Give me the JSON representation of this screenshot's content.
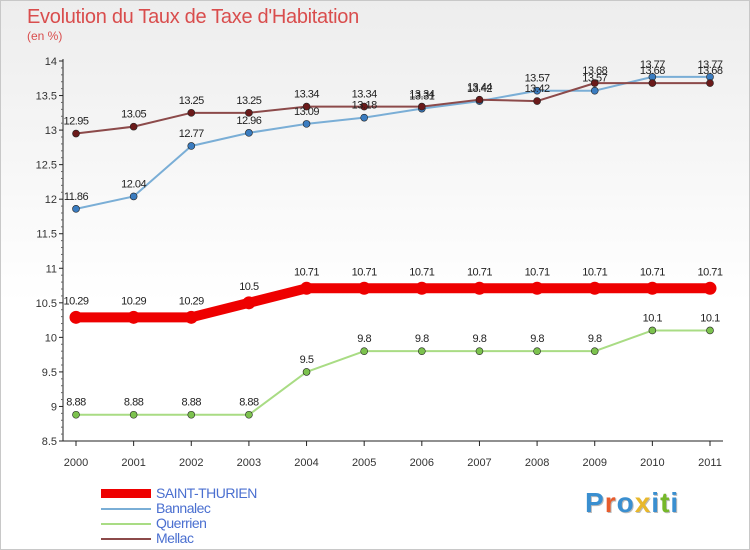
{
  "title": "Evolution du Taux de Taxe d'Habitation",
  "subtitle": "(en %)",
  "brand": "Proxiti",
  "brand_colors": [
    "#3a8fd0",
    "#e85c2c",
    "#3a8fd0",
    "#e8b82c",
    "#3a8fd0",
    "#76b82a",
    "#3a8fd0"
  ],
  "chart_data": {
    "type": "line",
    "title": "Evolution du Taux de Taxe d'Habitation",
    "ylabel": "(en %)",
    "xlabel": "",
    "x": [
      "2000",
      "2001",
      "2002",
      "2003",
      "2004",
      "2005",
      "2006",
      "2007",
      "2008",
      "2009",
      "2010",
      "2011"
    ],
    "ylim": [
      8.5,
      14
    ],
    "yticks": [
      "8.5",
      "9",
      "9.5",
      "10",
      "10.5",
      "11",
      "11.5",
      "12",
      "12.5",
      "13",
      "13.5",
      "14"
    ],
    "grid": false,
    "legend_position": "bottom-left",
    "series": [
      {
        "name": "SAINT-THURIEN",
        "color": "#ee0000",
        "values": [
          10.29,
          10.29,
          10.29,
          10.5,
          10.71,
          10.71,
          10.71,
          10.71,
          10.71,
          10.71,
          10.71,
          10.71
        ],
        "labels": [
          "10.29",
          "10.29",
          "10.29",
          "10.5",
          "10.71",
          "10.71",
          "10.71",
          "10.71",
          "10.71",
          "10.71",
          "10.71",
          "10.71"
        ]
      },
      {
        "name": "Bannalec",
        "color": "#7aaed6",
        "marker": "#3a7cc0",
        "values": [
          11.86,
          12.04,
          12.77,
          12.96,
          13.09,
          13.18,
          13.31,
          13.42,
          13.57,
          13.57,
          13.77,
          13.77
        ],
        "labels": [
          "11.86",
          "12.04",
          "12.77",
          "12.96",
          "13.09",
          "13.18",
          "13.31",
          "13.42",
          "13.57",
          "13.57",
          "13.77",
          "13.77"
        ]
      },
      {
        "name": "Querrien",
        "color": "#a9dc84",
        "marker": "#7cc24e",
        "values": [
          8.88,
          8.88,
          8.88,
          8.88,
          9.5,
          9.8,
          9.8,
          9.8,
          9.8,
          9.8,
          10.1,
          10.1
        ],
        "labels": [
          "8.88",
          "8.88",
          "8.88",
          "8.88",
          "9.5",
          "9.8",
          "9.8",
          "9.8",
          "9.8",
          "9.8",
          "10.1",
          "10.1"
        ]
      },
      {
        "name": "Mellac",
        "color": "#8c4a4a",
        "marker": "#6b1a1a",
        "values": [
          12.95,
          13.05,
          13.25,
          13.25,
          13.34,
          13.34,
          13.34,
          13.44,
          13.42,
          13.68,
          13.68,
          13.68
        ],
        "labels": [
          "12.95",
          "13.05",
          "13.25",
          "13.25",
          "13.34",
          "13.34",
          "13.34",
          "13.44",
          "13.42",
          "13.68",
          "13.68",
          "13.68"
        ]
      }
    ]
  }
}
